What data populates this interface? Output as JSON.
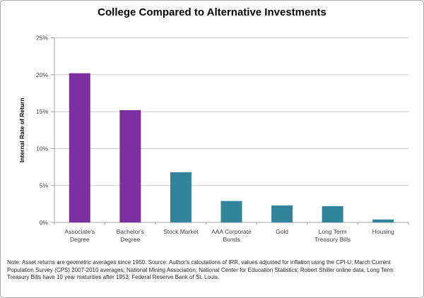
{
  "chart_data": {
    "type": "bar",
    "title": "College Compared to Alternative Investments",
    "xlabel": "",
    "ylabel": "Internal Rate of Return",
    "ylim": [
      0,
      25
    ],
    "yticks": [
      0,
      5,
      10,
      15,
      20,
      25
    ],
    "ytick_labels": [
      "0%",
      "5%",
      "10%",
      "15%",
      "20%",
      "25%"
    ],
    "grid": true,
    "legend": false,
    "categories": [
      "Associate's\nDegree",
      "Bachelor's\nDegree",
      "Stock Market",
      "AAA Corporate\nBonds",
      "Gold",
      "Long Term\nTreasury Bills",
      "Housing"
    ],
    "values": [
      20.2,
      15.2,
      6.8,
      2.9,
      2.3,
      2.2,
      0.4
    ],
    "bar_colors": [
      "#7C2FA0",
      "#7C2FA0",
      "#31849B",
      "#31849B",
      "#31849B",
      "#31849B",
      "#31849B"
    ],
    "colors": {
      "purple": "#7C2FA0",
      "teal": "#31849B",
      "gridline": "#C9C9C9",
      "axis": "#A0A0A0",
      "tick_label": "#404040",
      "title": "#000000"
    }
  },
  "note": {
    "text": "Note: Asset returns are geometric averages since 1950. Source: Author's calculations of IRR, values adjusted for inflation using the CPI-U; March Current Population Survey (CPS) 2007-2010 averages; National Mining Association; National Center for Education Statistics; Robert Shiller online data, Long Term Treasury Bills have 10 year maturities after 1953; Federal Reserve Bank of St. Louis."
  }
}
